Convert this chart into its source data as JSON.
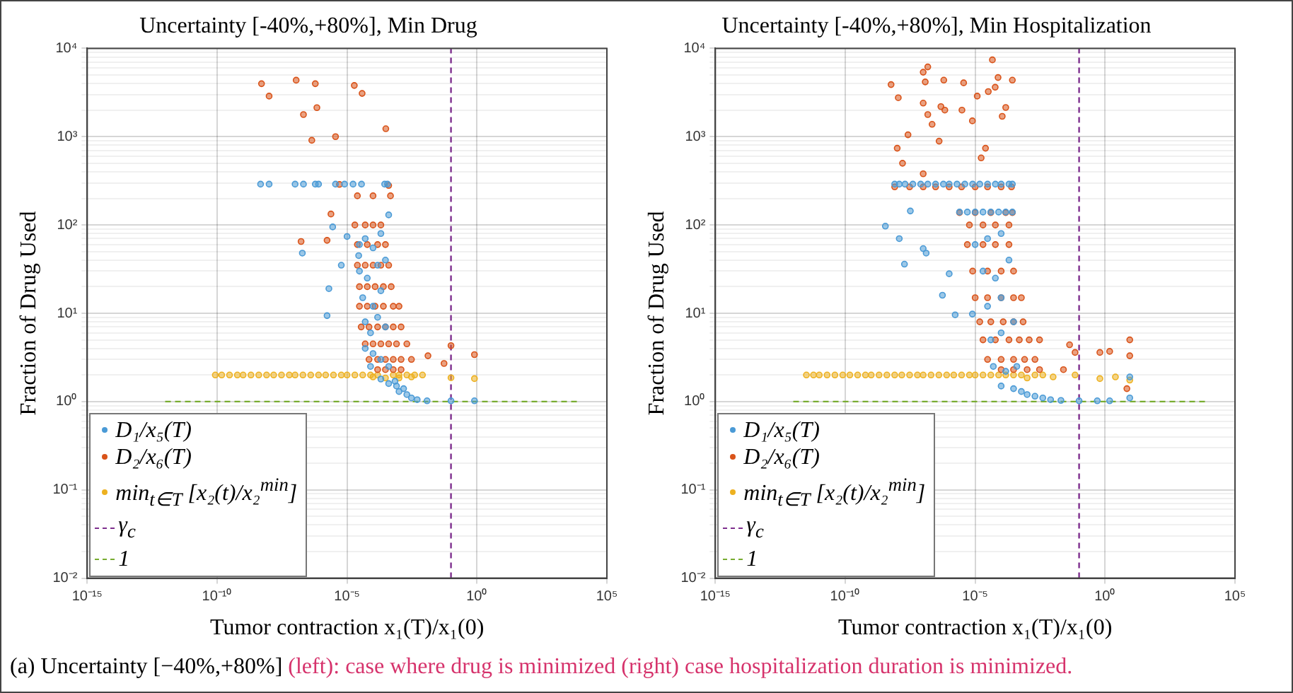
{
  "chart_data": [
    {
      "type": "scatter",
      "title": "Uncertainty [-40%,+80%], Min Drug",
      "xlabel": "Tumor contraction x₁(T)/x₁(0)",
      "ylabel": "Fraction of Drug Used",
      "log": "xy",
      "grid": true,
      "legend": "bottom left",
      "xlim": [
        1e-15,
        100000
      ],
      "ylim": [
        0.01,
        10000
      ],
      "xticks": [
        {
          "value": 1e-15,
          "label": "10⁻¹⁵"
        },
        {
          "value": 1e-10,
          "label": "10⁻¹⁰"
        },
        {
          "value": 1e-05,
          "label": "10⁻⁵"
        },
        {
          "value": 1,
          "label": "10⁰"
        },
        {
          "value": 100000,
          "label": "10⁵"
        }
      ],
      "yticks": [
        {
          "value": 0.01,
          "label": "10⁻²"
        },
        {
          "value": 0.02,
          "label": null
        },
        {
          "value": 0.03,
          "label": null
        },
        {
          "value": 0.04,
          "label": null
        },
        {
          "value": 0.05,
          "label": null
        },
        {
          "value": 0.06,
          "label": null
        },
        {
          "value": 0.07,
          "label": null
        },
        {
          "value": 0.08,
          "label": null
        },
        {
          "value": 0.09,
          "label": null
        },
        {
          "value": 0.1,
          "label": "10⁻¹"
        },
        {
          "value": 0.2,
          "label": null
        },
        {
          "value": 0.3,
          "label": null
        },
        {
          "value": 0.4,
          "label": null
        },
        {
          "value": 0.5,
          "label": null
        },
        {
          "value": 0.6,
          "label": null
        },
        {
          "value": 0.7,
          "label": null
        },
        {
          "value": 0.8,
          "label": null
        },
        {
          "value": 0.9,
          "label": null
        },
        {
          "value": 1,
          "label": "10⁰"
        },
        {
          "value": 2,
          "label": null
        },
        {
          "value": 3,
          "label": null
        },
        {
          "value": 4,
          "label": null
        },
        {
          "value": 5,
          "label": null
        },
        {
          "value": 6,
          "label": null
        },
        {
          "value": 7,
          "label": null
        },
        {
          "value": 8,
          "label": null
        },
        {
          "value": 9,
          "label": null
        },
        {
          "value": 10,
          "label": "10¹"
        },
        {
          "value": 20,
          "label": null
        },
        {
          "value": 30,
          "label": null
        },
        {
          "value": 40,
          "label": null
        },
        {
          "value": 50,
          "label": null
        },
        {
          "value": 60,
          "label": null
        },
        {
          "value": 70,
          "label": null
        },
        {
          "value": 80,
          "label": null
        },
        {
          "value": 90,
          "label": null
        },
        {
          "value": 100,
          "label": "10²"
        },
        {
          "value": 200,
          "label": null
        },
        {
          "value": 300,
          "label": null
        },
        {
          "value": 400,
          "label": null
        },
        {
          "value": 500,
          "label": null
        },
        {
          "value": 600,
          "label": null
        },
        {
          "value": 700,
          "label": null
        },
        {
          "value": 800,
          "label": null
        },
        {
          "value": 900,
          "label": null
        },
        {
          "value": 1000,
          "label": "10³"
        },
        {
          "value": 2000,
          "label": null
        },
        {
          "value": 3000,
          "label": null
        },
        {
          "value": 4000,
          "label": null
        },
        {
          "value": 5000,
          "label": null
        },
        {
          "value": 6000,
          "label": null
        },
        {
          "value": 7000,
          "label": null
        },
        {
          "value": 8000,
          "label": null
        },
        {
          "value": 9000,
          "label": null
        },
        {
          "value": 10000,
          "label": "10⁴"
        }
      ],
      "annotations": [
        "(a) Uncertainty [−40%,+80%]",
        "(left): case where drug is minimized (right) case hospitalization duration is minimized."
      ],
      "series": [
        {
          "name": "D₁/x₅(T)",
          "color": "#4a9ad6",
          "marker": "circle",
          "x": [
            4.7e-09,
            1e-08,
            1e-07,
            2.1e-07,
            6e-07,
            8e-07,
            3.6e-06,
            8e-06,
            1.7e-05,
            3.6e-05,
            0.00028,
            0.00036,
            2.8e-06,
            1.9e-07,
            1.7e-06,
            2e-06,
            6e-06,
            1e-05,
            2.8e-05,
            3e-05,
            5e-05,
            0.0001,
            0.0002,
            0.0004,
            3e-05,
            6e-05,
            0.00015,
            0.0003,
            4e-05,
            0.0001,
            0.0002,
            5e-05,
            8e-05,
            0.00015,
            0.0003,
            5e-05,
            0.0001,
            0.0002,
            0.0004,
            8e-05,
            0.0002,
            0.0004,
            0.0008,
            0.001,
            0.002,
            0.003,
            0.005,
            0.012,
            0.1,
            0.8,
            0.0007,
            0.0015
          ],
          "values": [
            290,
            290,
            290,
            290,
            290,
            290,
            290,
            290,
            290,
            290,
            290,
            290,
            95,
            48,
            9.4,
            19,
            35,
            74,
            45,
            60,
            70,
            55,
            80,
            130,
            30,
            25,
            35,
            40,
            15,
            12,
            18,
            8,
            6,
            9,
            7,
            4,
            3.5,
            3,
            2.5,
            2.5,
            1.8,
            1.6,
            1.5,
            1.3,
            1.2,
            1.1,
            1.05,
            1.02,
            1.02,
            1.02,
            1.7,
            1.4
          ]
        },
        {
          "name": "D₂/x₆(T)",
          "color": "#d95319",
          "marker": "circle",
          "x": [
            5.1e-09,
            1e-08,
            1.1e-07,
            2.1e-07,
            6e-07,
            6.9e-07,
            4.4e-07,
            3.6e-06,
            1.9e-05,
            3.8e-05,
            0.00031,
            1.7e-07,
            1.7e-06,
            2.4e-06,
            5.1e-06,
            2.5e-05,
            0.0001,
            0.00047,
            0.0004,
            2e-05,
            5e-05,
            0.0001,
            0.0002,
            2.5e-05,
            6e-05,
            0.00015,
            0.0003,
            2.5e-05,
            5e-05,
            0.0001,
            0.0002,
            0.0004,
            3e-05,
            6e-05,
            0.00012,
            0.00025,
            0.0005,
            3e-05,
            6e-05,
            0.00012,
            0.00025,
            0.0006,
            0.001,
            3.5e-05,
            7e-05,
            0.00015,
            0.0003,
            0.0006,
            0.0012,
            5e-05,
            0.0001,
            0.0002,
            0.0004,
            0.0008,
            0.002,
            7e-05,
            0.00015,
            0.0003,
            0.0006,
            0.0012,
            0.003,
            0.00015,
            0.0003,
            0.0006,
            0.0012,
            0.013,
            0.1,
            0.8,
            0.054
          ],
          "values": [
            3980,
            2880,
            4360,
            1780,
            3980,
            2130,
            910,
            1000,
            3800,
            3090,
            1230,
            65,
            67,
            133,
            288,
            214,
            214,
            214,
            280,
            100,
            100,
            100,
            100,
            60,
            60,
            60,
            60,
            35,
            35,
            35,
            35,
            35,
            20,
            20,
            20,
            20,
            20,
            12,
            12,
            12,
            12,
            12,
            12,
            7,
            7,
            7,
            7,
            7,
            7,
            4.5,
            4.5,
            4.5,
            4.5,
            4.5,
            4.5,
            3,
            3,
            3,
            3,
            3,
            3,
            2.3,
            2.3,
            2.3,
            2.3,
            3.3,
            4.3,
            3.4,
            2.7
          ]
        },
        {
          "name": "min$_{t∈T}$ [x₂(t)/x₂$^{min}$]",
          "color": "#edb120",
          "marker": "circle",
          "x": [
            8.5e-11,
            1.5e-10,
            3e-10,
            6e-10,
            1e-09,
            2e-09,
            4e-09,
            8e-09,
            1.5e-08,
            3e-08,
            6e-08,
            1e-07,
            2e-07,
            4e-07,
            8e-07,
            1.5e-06,
            3e-06,
            6e-06,
            1e-05,
            2e-05,
            4e-05,
            8e-05,
            0.00015,
            0.0006,
            0.001,
            0.002,
            0.004,
            0.008,
            0.0001,
            0.0003,
            0.001,
            0.003,
            0.1,
            0.8
          ],
          "values": [
            2,
            2,
            2,
            2,
            2,
            2,
            2,
            2,
            2,
            2,
            2,
            2,
            2,
            2,
            2,
            2,
            2,
            2,
            2,
            2,
            2,
            2,
            2,
            2,
            2,
            2,
            2,
            2,
            1.9,
            1.85,
            1.85,
            1.9,
            1.86,
            1.82
          ]
        },
        {
          "name": "γ$_{c}$",
          "color": "#7e2f8e",
          "type": "line",
          "marker": "none",
          "line_style": "dashed",
          "x": [
            0.1,
            0.1
          ],
          "values": [
            0.01,
            10000
          ]
        },
        {
          "name": "1",
          "color": "#77ac30",
          "type": "line",
          "marker": "none",
          "line_style": "dashed",
          "x": [
            1e-12,
            10000
          ],
          "values": [
            1,
            1
          ]
        }
      ]
    },
    {
      "type": "scatter",
      "title": "Uncertainty [-40%,+80%], Min Hospitalization",
      "xlabel": "Tumor contraction x₁(T)/x₁(0)",
      "ylabel": "Fraction of Drug Used",
      "log": "xy",
      "grid": true,
      "legend": "bottom left",
      "xlim": [
        1e-15,
        100000
      ],
      "ylim": [
        0.01,
        10000
      ],
      "xticks": [
        {
          "value": 1e-15,
          "label": "10⁻¹⁵"
        },
        {
          "value": 1e-10,
          "label": "10⁻¹⁰"
        },
        {
          "value": 1e-05,
          "label": "10⁻⁵"
        },
        {
          "value": 1,
          "label": "10⁰"
        },
        {
          "value": 100000,
          "label": "10⁵"
        }
      ],
      "yticks": [
        {
          "value": 0.01,
          "label": "10⁻²"
        },
        {
          "value": 0.02,
          "label": null
        },
        {
          "value": 0.03,
          "label": null
        },
        {
          "value": 0.04,
          "label": null
        },
        {
          "value": 0.05,
          "label": null
        },
        {
          "value": 0.06,
          "label": null
        },
        {
          "value": 0.07,
          "label": null
        },
        {
          "value": 0.08,
          "label": null
        },
        {
          "value": 0.09,
          "label": null
        },
        {
          "value": 0.1,
          "label": "10⁻¹"
        },
        {
          "value": 0.2,
          "label": null
        },
        {
          "value": 0.3,
          "label": null
        },
        {
          "value": 0.4,
          "label": null
        },
        {
          "value": 0.5,
          "label": null
        },
        {
          "value": 0.6,
          "label": null
        },
        {
          "value": 0.7,
          "label": null
        },
        {
          "value": 0.8,
          "label": null
        },
        {
          "value": 0.9,
          "label": null
        },
        {
          "value": 1,
          "label": "10⁰"
        },
        {
          "value": 2,
          "label": null
        },
        {
          "value": 3,
          "label": null
        },
        {
          "value": 4,
          "label": null
        },
        {
          "value": 5,
          "label": null
        },
        {
          "value": 6,
          "label": null
        },
        {
          "value": 7,
          "label": null
        },
        {
          "value": 8,
          "label": null
        },
        {
          "value": 9,
          "label": null
        },
        {
          "value": 10,
          "label": "10¹"
        },
        {
          "value": 20,
          "label": null
        },
        {
          "value": 30,
          "label": null
        },
        {
          "value": 40,
          "label": null
        },
        {
          "value": 50,
          "label": null
        },
        {
          "value": 60,
          "label": null
        },
        {
          "value": 70,
          "label": null
        },
        {
          "value": 80,
          "label": null
        },
        {
          "value": 90,
          "label": null
        },
        {
          "value": 100,
          "label": "10²"
        },
        {
          "value": 200,
          "label": null
        },
        {
          "value": 300,
          "label": null
        },
        {
          "value": 400,
          "label": null
        },
        {
          "value": 500,
          "label": null
        },
        {
          "value": 600,
          "label": null
        },
        {
          "value": 700,
          "label": null
        },
        {
          "value": 800,
          "label": null
        },
        {
          "value": 900,
          "label": null
        },
        {
          "value": 1000,
          "label": "10³"
        },
        {
          "value": 2000,
          "label": null
        },
        {
          "value": 3000,
          "label": null
        },
        {
          "value": 4000,
          "label": null
        },
        {
          "value": 5000,
          "label": null
        },
        {
          "value": 6000,
          "label": null
        },
        {
          "value": 7000,
          "label": null
        },
        {
          "value": 8000,
          "label": null
        },
        {
          "value": 9000,
          "label": null
        },
        {
          "value": 10000,
          "label": "10⁴"
        }
      ],
      "series": [
        {
          "name": "D₁/x₅(T)",
          "color": "#4a9ad6",
          "marker": "circle",
          "x": [
            8e-09,
            1.2e-08,
            2e-08,
            4e-08,
            8e-08,
            1.5e-07,
            3e-07,
            6e-07,
            1e-06,
            2e-06,
            4e-06,
            8e-06,
            1.5e-05,
            3e-05,
            6e-05,
            0.0001,
            0.0002,
            0.00027,
            2.5e-06,
            5e-06,
            1e-05,
            2e-05,
            4e-05,
            8e-05,
            0.00015,
            0.00027,
            3.5e-09,
            1.2e-08,
            1.9e-08,
            1e-07,
            1.3e-07,
            3.2e-08,
            5.5e-07,
            1.7e-06,
            1e-06,
            7.8e-06,
            1e-05,
            3e-05,
            0.0001,
            2e-05,
            6e-05,
            0.0002,
            3e-05,
            0.0001,
            4e-05,
            0.0001,
            0.0003,
            5e-05,
            0.00015,
            0.0004,
            0.0001,
            0.0003,
            0.0006,
            0.001,
            0.002,
            0.004,
            0.008,
            0.02,
            0.1,
            0.5,
            1.5,
            8.9,
            8.9
          ],
          "values": [
            290,
            290,
            290,
            290,
            290,
            290,
            290,
            290,
            290,
            290,
            290,
            290,
            290,
            290,
            290,
            290,
            290,
            290,
            140,
            140,
            140,
            140,
            140,
            140,
            140,
            140,
            97,
            70,
            36,
            54,
            48,
            144,
            16,
            9.6,
            28,
            9.8,
            60,
            70,
            80,
            30,
            25,
            40,
            12,
            15,
            5,
            6,
            8,
            2.5,
            2.2,
            2.5,
            1.5,
            1.4,
            1.3,
            1.2,
            1.15,
            1.1,
            1.05,
            1.03,
            1.02,
            1.02,
            1.02,
            1.1,
            1.9
          ]
        },
        {
          "name": "D₂/x₆(T)",
          "color": "#d95319",
          "marker": "circle",
          "x": [
            5.8e-09,
            1.1e-08,
            1e-08,
            1.6e-08,
            2.6e-08,
            1e-07,
            1.5e-07,
            1.2e-07,
            1e-07,
            1.5e-07,
            2.2e-07,
            4.8e-07,
            4.1e-07,
            6.2e-07,
            6.8e-07,
            3.6e-06,
            3.1e-06,
            7.8e-06,
            1.2e-05,
            1.7e-05,
            2.5e-05,
            3.2e-05,
            4.6e-05,
            5.9e-05,
            7.6e-05,
            0.00011,
            0.00015,
            0.00027,
            1e-07,
            8e-09,
            3e-08,
            1e-07,
            3e-07,
            1e-06,
            3e-06,
            1e-05,
            3e-05,
            0.0001,
            0.00025,
            2.5e-06,
            1e-05,
            4e-05,
            0.00015,
            0.00027,
            6e-06,
            2e-05,
            6e-05,
            0.0002,
            5e-06,
            2e-05,
            6e-05,
            0.0002,
            8e-06,
            3e-05,
            0.0001,
            0.0003,
            1e-05,
            3e-05,
            0.0001,
            0.0003,
            0.0006,
            1.5e-05,
            4e-05,
            0.00012,
            0.0003,
            0.0007,
            2e-05,
            6e-05,
            0.0002,
            0.0005,
            0.0012,
            0.003,
            3e-05,
            0.0001,
            0.0003,
            0.0008,
            0.002,
            0.0001,
            0.0003,
            0.001,
            0.003,
            0.043,
            0.07,
            0.63,
            1.5,
            8.9,
            8.9,
            6.9,
            0.025
          ],
          "values": [
            3890,
            2760,
            740,
            500,
            1050,
            5370,
            6170,
            4170,
            2400,
            1780,
            1380,
            2190,
            890,
            4370,
            2000,
            4070,
            2000,
            1510,
            2880,
            575,
            740,
            3240,
            7410,
            3630,
            4680,
            1700,
            2140,
            4370,
            380,
            270,
            270,
            270,
            270,
            270,
            270,
            270,
            270,
            270,
            270,
            138,
            138,
            138,
            138,
            138,
            100,
            100,
            100,
            100,
            60,
            60,
            60,
            60,
            30,
            30,
            30,
            30,
            15,
            15,
            15,
            15,
            15,
            8,
            8,
            8,
            8,
            8,
            5,
            5,
            5,
            5,
            5,
            5,
            3,
            3,
            3,
            3,
            3,
            2.3,
            2.3,
            2.3,
            2.3,
            4.4,
            3.6,
            3.6,
            3.7,
            5,
            3.3,
            1.4,
            2.3
          ]
        },
        {
          "name": "min$_{t∈T}$ [x₂(t)/x₂$^{min}$]",
          "color": "#edb120",
          "marker": "circle",
          "x": [
            3.2e-12,
            6e-12,
            1e-11,
            2e-11,
            4e-11,
            8e-11,
            1.5e-10,
            3e-10,
            6e-10,
            1e-09,
            2e-09,
            4e-09,
            8e-09,
            1.5e-08,
            3e-08,
            6e-08,
            1e-07,
            2e-07,
            4e-07,
            8e-07,
            1.5e-06,
            3e-06,
            6e-06,
            1e-05,
            2e-05,
            4e-05,
            8e-05,
            0.00015,
            0.0003,
            0.0006,
            0.002,
            0.004,
            0.07,
            0.001,
            0.01,
            0.63,
            2.5,
            8.9
          ],
          "values": [
            2,
            2,
            2,
            2,
            2,
            2,
            2,
            2,
            2,
            2,
            2,
            2,
            2,
            2,
            2,
            2,
            2,
            2,
            2,
            2,
            2,
            2,
            2,
            2,
            2,
            2,
            2,
            2,
            2,
            2,
            2,
            2,
            2,
            1.85,
            1.9,
            1.82,
            1.9,
            1.75
          ]
        },
        {
          "name": "γ$_{c}$",
          "color": "#7e2f8e",
          "type": "line",
          "marker": "none",
          "line_style": "dashed",
          "x": [
            0.1,
            0.1
          ],
          "values": [
            0.01,
            10000
          ]
        },
        {
          "name": "1",
          "color": "#77ac30",
          "type": "line",
          "marker": "none",
          "line_style": "dashed",
          "x": [
            1e-12,
            10000
          ],
          "values": [
            1,
            1
          ]
        }
      ]
    }
  ]
}
